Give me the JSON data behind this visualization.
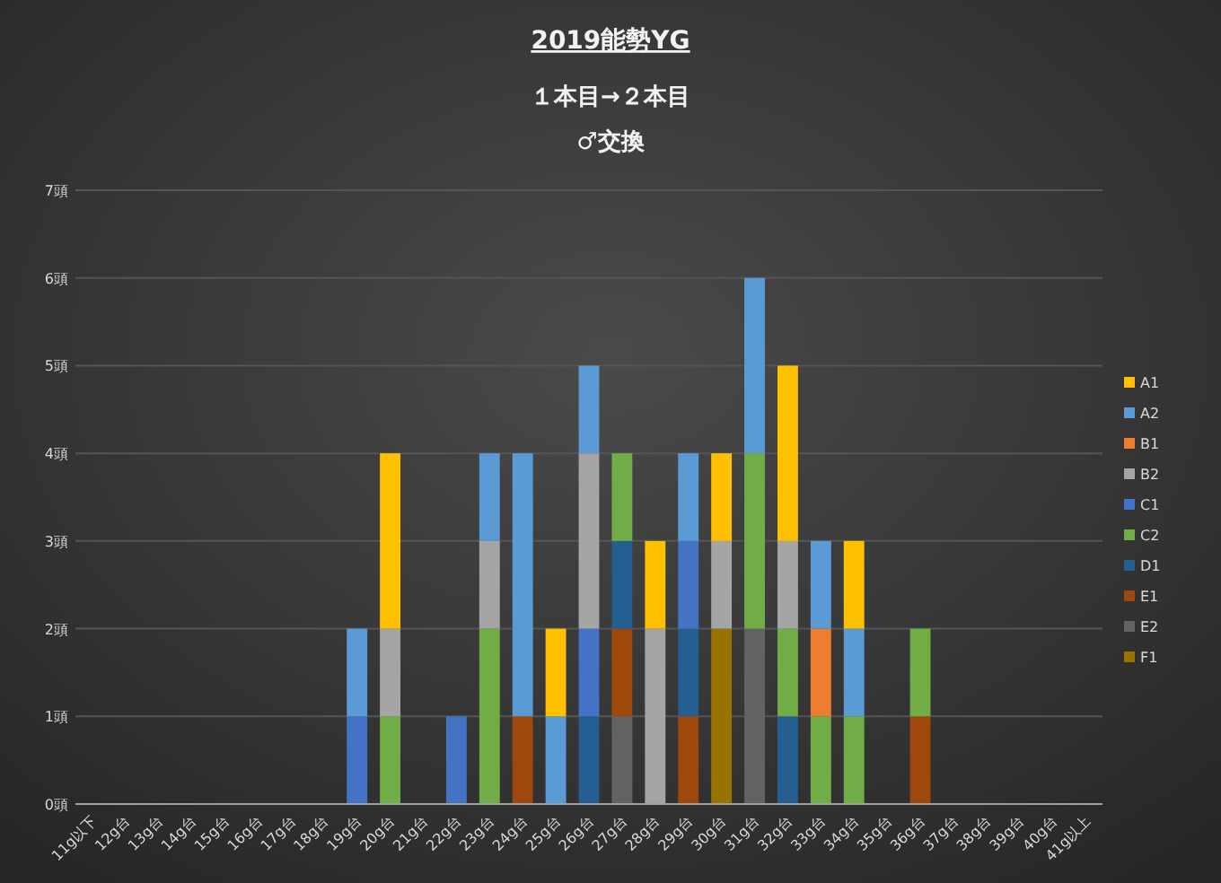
{
  "chart_data": {
    "type": "bar",
    "stacked": true,
    "title": "2019能勢YG",
    "subtitle": "１本目→２本目\n♂交換",
    "categories": [
      "11g以下",
      "12g台",
      "13g台",
      "14g台",
      "15g台",
      "16g台",
      "17g台",
      "18g台",
      "19g台",
      "20g台",
      "21g台",
      "22g台",
      "23g台",
      "24g台",
      "25g台",
      "26g台",
      "27g台",
      "28g台",
      "29g台",
      "30g台",
      "31g台",
      "32g台",
      "33g台",
      "34g台",
      "35g台",
      "36g台",
      "37g台",
      "38g台",
      "39g台",
      "40g台",
      "41g以上"
    ],
    "series": [
      {
        "name": "F1",
        "color": "#997300",
        "values": [
          0,
          0,
          0,
          0,
          0,
          0,
          0,
          0,
          0,
          0,
          0,
          0,
          0,
          0,
          0,
          0,
          0,
          0,
          0,
          2,
          0,
          0,
          0,
          0,
          0,
          0,
          0,
          0,
          0,
          0,
          0
        ]
      },
      {
        "name": "E2",
        "color": "#636363",
        "values": [
          0,
          0,
          0,
          0,
          0,
          0,
          0,
          0,
          0,
          0,
          0,
          0,
          0,
          0,
          0,
          0,
          1,
          0,
          0,
          0,
          2,
          0,
          0,
          0,
          0,
          0,
          0,
          0,
          0,
          0,
          0
        ]
      },
      {
        "name": "E1",
        "color": "#9e480e",
        "values": [
          0,
          0,
          0,
          0,
          0,
          0,
          0,
          0,
          0,
          0,
          0,
          0,
          0,
          1,
          0,
          0,
          1,
          0,
          1,
          0,
          0,
          0,
          0,
          0,
          0,
          1,
          0,
          0,
          0,
          0,
          0
        ]
      },
      {
        "name": "D1",
        "color": "#255e91",
        "values": [
          0,
          0,
          0,
          0,
          0,
          0,
          0,
          0,
          0,
          0,
          0,
          0,
          0,
          0,
          0,
          1,
          1,
          0,
          1,
          0,
          0,
          1,
          0,
          0,
          0,
          0,
          0,
          0,
          0,
          0,
          0
        ]
      },
      {
        "name": "C2",
        "color": "#70ad47",
        "values": [
          0,
          0,
          0,
          0,
          0,
          0,
          0,
          0,
          0,
          1,
          0,
          0,
          2,
          0,
          0,
          0,
          1,
          0,
          0,
          0,
          2,
          1,
          1,
          1,
          0,
          1,
          0,
          0,
          0,
          0,
          0
        ]
      },
      {
        "name": "C1",
        "color": "#4472c4",
        "values": [
          0,
          0,
          0,
          0,
          0,
          0,
          0,
          0,
          1,
          0,
          0,
          1,
          0,
          0,
          0,
          1,
          0,
          0,
          1,
          0,
          0,
          0,
          0,
          0,
          0,
          0,
          0,
          0,
          0,
          0,
          0
        ]
      },
      {
        "name": "B2",
        "color": "#a5a5a5",
        "values": [
          0,
          0,
          0,
          0,
          0,
          0,
          0,
          0,
          0,
          1,
          0,
          0,
          1,
          0,
          0,
          2,
          0,
          2,
          0,
          1,
          0,
          1,
          0,
          0,
          0,
          0,
          0,
          0,
          0,
          0,
          0
        ]
      },
      {
        "name": "B1",
        "color": "#ed7d31",
        "values": [
          0,
          0,
          0,
          0,
          0,
          0,
          0,
          0,
          0,
          0,
          0,
          0,
          0,
          0,
          0,
          0,
          0,
          0,
          0,
          0,
          0,
          0,
          1,
          0,
          0,
          0,
          0,
          0,
          0,
          0,
          0
        ]
      },
      {
        "name": "A2",
        "color": "#5b9bd5",
        "values": [
          0,
          0,
          0,
          0,
          0,
          0,
          0,
          0,
          1,
          0,
          0,
          0,
          1,
          3,
          1,
          1,
          0,
          0,
          1,
          0,
          2,
          0,
          1,
          1,
          0,
          0,
          0,
          0,
          0,
          0,
          0
        ]
      },
      {
        "name": "A1",
        "color": "#ffc000",
        "values": [
          0,
          0,
          0,
          0,
          0,
          0,
          0,
          0,
          0,
          2,
          0,
          0,
          0,
          0,
          1,
          0,
          0,
          1,
          0,
          1,
          0,
          2,
          0,
          1,
          0,
          0,
          0,
          0,
          0,
          0,
          0
        ]
      }
    ],
    "ylim": [
      0,
      7
    ],
    "yticks": [
      {
        "value": 0,
        "label": "0頭"
      },
      {
        "value": 1,
        "label": "1頭"
      },
      {
        "value": 2,
        "label": "2頭"
      },
      {
        "value": 3,
        "label": "3頭"
      },
      {
        "value": 4,
        "label": "4頭"
      },
      {
        "value": 5,
        "label": "5頭"
      },
      {
        "value": 6,
        "label": "6頭"
      },
      {
        "value": 7,
        "label": "7頭"
      }
    ],
    "grid": "y",
    "legend": "right"
  }
}
